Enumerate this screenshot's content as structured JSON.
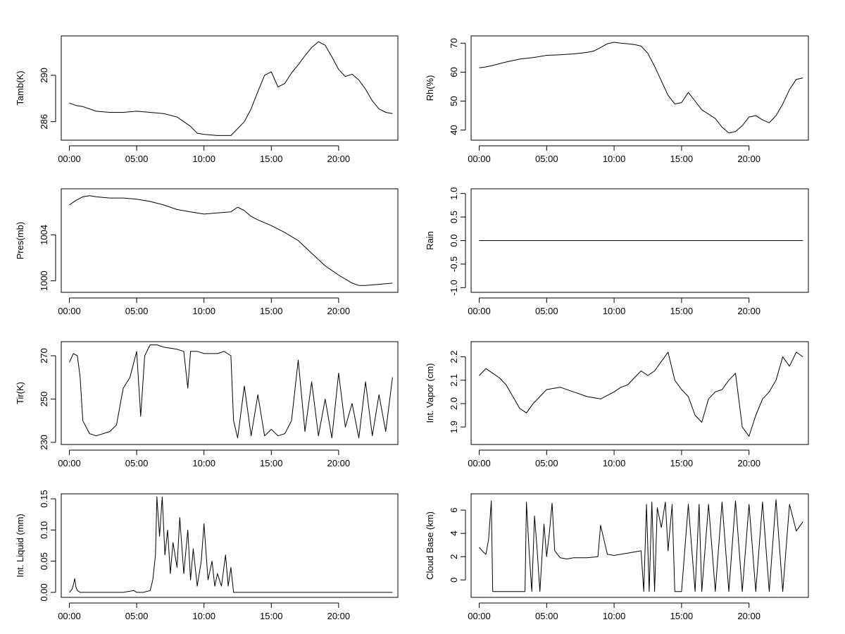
{
  "chart_data": [
    {
      "type": "line",
      "ylabel": "Tamb(K)",
      "x_ticks": [
        "00:00",
        "05:00",
        "10:00",
        "15:00",
        "20:00"
      ],
      "y_ticks": [
        286,
        290
      ],
      "xlim": [
        -0.6,
        24.4
      ],
      "ylim": [
        284.4,
        293.4
      ],
      "series": [
        {
          "x": [
            0,
            0.5,
            1,
            1.5,
            2,
            3,
            4,
            5,
            6,
            7,
            8,
            9,
            9.5,
            10,
            11,
            12,
            12.5,
            13,
            13.5,
            14,
            14.5,
            15,
            15.5,
            16,
            16.5,
            17,
            17.5,
            18,
            18.5,
            19,
            19.5,
            20,
            20.5,
            21,
            21.5,
            22,
            22.5,
            23,
            23.5,
            24
          ],
          "y": [
            287.6,
            287.4,
            287.3,
            287.1,
            286.9,
            286.8,
            286.8,
            286.9,
            286.8,
            286.7,
            286.4,
            285.6,
            285.0,
            284.9,
            284.8,
            284.8,
            285.4,
            286.0,
            287.1,
            288.6,
            290.0,
            290.3,
            289.0,
            289.3,
            290.2,
            290.9,
            291.7,
            292.4,
            292.9,
            292.6,
            291.6,
            290.5,
            289.9,
            290.1,
            289.6,
            288.8,
            287.8,
            287.1,
            286.8,
            286.7
          ]
        }
      ]
    },
    {
      "type": "line",
      "ylabel": "Rh(%)",
      "x_ticks": [
        "00:00",
        "05:00",
        "10:00",
        "15:00",
        "20:00"
      ],
      "y_ticks": [
        40,
        50,
        60,
        70
      ],
      "xlim": [
        -0.6,
        24.4
      ],
      "ylim": [
        36.5,
        72.5
      ],
      "series": [
        {
          "x": [
            0,
            0.5,
            1,
            2,
            3,
            4,
            5,
            6,
            7,
            8,
            8.5,
            9,
            9.5,
            10,
            10.5,
            11,
            11.5,
            12,
            12.5,
            13,
            13.5,
            14,
            14.5,
            15,
            15.5,
            16,
            16.5,
            17,
            17.5,
            18,
            18.5,
            19,
            19.5,
            20,
            20.5,
            21,
            21.5,
            22,
            22.5,
            23,
            23.5,
            24
          ],
          "y": [
            61.5,
            61.8,
            62.3,
            63.5,
            64.5,
            65.0,
            65.8,
            66.0,
            66.3,
            66.8,
            67.3,
            68.5,
            69.8,
            70.3,
            70.0,
            69.8,
            69.5,
            69.0,
            66.5,
            62.0,
            57.0,
            52.0,
            49.0,
            49.5,
            53.0,
            50.0,
            47.0,
            45.5,
            44.0,
            41.0,
            39.0,
            39.5,
            41.5,
            44.5,
            45.0,
            43.5,
            42.5,
            45.0,
            49.0,
            54.0,
            57.5,
            58.0
          ]
        }
      ]
    },
    {
      "type": "line",
      "ylabel": "Pres(mb)",
      "x_ticks": [
        "00:00",
        "05:00",
        "10:00",
        "15:00",
        "20:00"
      ],
      "y_ticks": [
        1000,
        1004
      ],
      "xlim": [
        -0.6,
        24.4
      ],
      "ylim": [
        999.0,
        1008.0
      ],
      "series": [
        {
          "x": [
            0,
            0.5,
            1,
            1.5,
            2,
            3,
            4,
            5,
            6,
            7,
            8,
            9,
            10,
            11,
            12,
            12.5,
            13,
            13.5,
            14,
            15,
            16,
            17,
            18,
            19,
            20,
            21,
            21.5,
            22,
            23,
            24
          ],
          "y": [
            1006.6,
            1007.0,
            1007.3,
            1007.4,
            1007.3,
            1007.2,
            1007.2,
            1007.1,
            1006.9,
            1006.6,
            1006.2,
            1006.0,
            1005.8,
            1005.9,
            1006.0,
            1006.4,
            1006.1,
            1005.6,
            1005.3,
            1004.8,
            1004.2,
            1003.5,
            1002.4,
            1001.3,
            1000.5,
            999.8,
            999.6,
            999.6,
            999.7,
            999.8
          ]
        }
      ]
    },
    {
      "type": "line",
      "ylabel": "Rain",
      "x_ticks": [
        "00:00",
        "05:00",
        "10:00",
        "15:00",
        "20:00"
      ],
      "y_ticks": [
        -1.0,
        -0.5,
        0.0,
        0.5,
        1.0
      ],
      "xlim": [
        -0.6,
        24.4
      ],
      "ylim": [
        -1.1,
        1.1
      ],
      "series": [
        {
          "x": [
            0,
            24
          ],
          "y": [
            0,
            0
          ]
        }
      ]
    },
    {
      "type": "line",
      "ylabel": "Tir(K)",
      "x_ticks": [
        "00:00",
        "05:00",
        "10:00",
        "15:00",
        "20:00"
      ],
      "y_ticks": [
        230,
        250,
        270
      ],
      "xlim": [
        -0.6,
        24.4
      ],
      "ylim": [
        229,
        276.5
      ],
      "series": [
        {
          "x": [
            0,
            0.3,
            0.6,
            0.8,
            1,
            1.5,
            2,
            3,
            3.5,
            4,
            4.5,
            5,
            5.3,
            5.6,
            6,
            6.5,
            7,
            8,
            8.5,
            8.8,
            9,
            9.5,
            10,
            11,
            11.5,
            12,
            12.2,
            12.5,
            13,
            13.5,
            14,
            14.5,
            15,
            15.5,
            16,
            16.5,
            17,
            17.5,
            18,
            18.5,
            19,
            19.5,
            20,
            20.5,
            21,
            21.5,
            22,
            22.5,
            23,
            23.5,
            24
          ],
          "y": [
            267,
            271,
            270,
            260,
            240,
            234,
            233,
            235,
            238,
            255,
            260,
            272,
            242,
            270,
            275,
            275,
            274,
            273,
            272,
            255,
            272,
            272,
            271,
            271,
            272,
            270,
            240,
            232,
            256,
            233,
            252,
            233,
            236,
            233,
            234,
            240,
            268,
            235,
            258,
            233,
            250,
            232,
            262,
            237,
            248,
            232,
            258,
            233,
            252,
            235,
            260
          ]
        }
      ]
    },
    {
      "type": "line",
      "ylabel": "Int. Vapor (cm)",
      "x_ticks": [
        "00:00",
        "05:00",
        "10:00",
        "15:00",
        "20:00"
      ],
      "y_ticks": [
        1.9,
        2.0,
        2.1,
        2.2
      ],
      "xlim": [
        -0.6,
        24.4
      ],
      "ylim": [
        1.825,
        2.265
      ],
      "series": [
        {
          "x": [
            0,
            0.5,
            1,
            1.5,
            2,
            2.5,
            3,
            3.5,
            4,
            4.5,
            5,
            6,
            7,
            8,
            9,
            10,
            10.5,
            11,
            11.5,
            12,
            12.5,
            13,
            13.5,
            14,
            14.5,
            15,
            15.5,
            16,
            16.5,
            17,
            17.5,
            18,
            18.5,
            19,
            19.5,
            20,
            20.5,
            21,
            21.5,
            22,
            22.5,
            23,
            23.5,
            24
          ],
          "y": [
            2.12,
            2.15,
            2.13,
            2.11,
            2.08,
            2.03,
            1.98,
            1.96,
            2.0,
            2.03,
            2.06,
            2.07,
            2.05,
            2.03,
            2.02,
            2.05,
            2.07,
            2.08,
            2.11,
            2.14,
            2.12,
            2.14,
            2.18,
            2.22,
            2.1,
            2.06,
            2.03,
            1.95,
            1.92,
            2.02,
            2.05,
            2.06,
            2.1,
            2.13,
            1.9,
            1.86,
            1.95,
            2.02,
            2.05,
            2.1,
            2.2,
            2.16,
            2.22,
            2.2
          ]
        }
      ]
    },
    {
      "type": "line",
      "ylabel": "Int. Liquid (mm)",
      "x_ticks": [
        "00:00",
        "05:00",
        "10:00",
        "15:00",
        "20:00"
      ],
      "y_ticks": [
        0.0,
        0.05,
        0.1,
        0.15
      ],
      "xlim": [
        -0.6,
        24.4
      ],
      "ylim": [
        -0.008,
        0.158
      ],
      "series": [
        {
          "x": [
            0,
            0.2,
            0.3,
            0.4,
            0.5,
            0.6,
            0.8,
            1,
            2,
            3,
            4,
            4.8,
            5,
            5.5,
            6,
            6.2,
            6.4,
            6.5,
            6.7,
            6.9,
            7.1,
            7.3,
            7.5,
            7.7,
            8,
            8.2,
            8.5,
            8.8,
            9,
            9.2,
            9.5,
            9.8,
            10,
            10.3,
            10.6,
            10.8,
            11,
            11.3,
            11.6,
            11.8,
            12,
            12.2,
            13,
            15,
            18,
            20,
            22,
            24
          ],
          "y": [
            0,
            0.005,
            0.012,
            0.022,
            0.008,
            0.003,
            0,
            0,
            0,
            0,
            0,
            0.003,
            0,
            0,
            0.003,
            0.02,
            0.06,
            0.153,
            0.09,
            0.153,
            0.06,
            0.1,
            0.03,
            0.08,
            0.04,
            0.12,
            0.03,
            0.1,
            0.02,
            0.07,
            0.01,
            0.05,
            0.11,
            0.02,
            0.05,
            0.01,
            0.03,
            0.01,
            0.06,
            0.01,
            0.04,
            0,
            0,
            0,
            0,
            0,
            0,
            0
          ]
        }
      ]
    },
    {
      "type": "line",
      "ylabel": "Cloud Base (km)",
      "x_ticks": [
        "00:00",
        "05:00",
        "10:00",
        "15:00",
        "20:00"
      ],
      "y_ticks": [
        0,
        2,
        4,
        6
      ],
      "xlim": [
        -0.6,
        24.4
      ],
      "ylim": [
        -1.5,
        7.4
      ],
      "series": [
        {
          "x": [
            0,
            0.3,
            0.5,
            0.7,
            0.9,
            1,
            2,
            3,
            3.4,
            3.5,
            3.7,
            3.9,
            4.1,
            4.3,
            4.5,
            4.8,
            5,
            5.2,
            5.4,
            5.6,
            6,
            6.5,
            7,
            8,
            8.8,
            9,
            9.5,
            10,
            11,
            12,
            12.2,
            12.4,
            12.6,
            12.8,
            13,
            13.2,
            13.5,
            13.8,
            14,
            14.3,
            14.5,
            15,
            15.5,
            16,
            16.3,
            16.5,
            17,
            17.5,
            18,
            18.5,
            19,
            19.5,
            20,
            20.5,
            21,
            21.5,
            22,
            22.5,
            23,
            23.5,
            24
          ],
          "y": [
            2.8,
            2.4,
            2.2,
            3.5,
            6.8,
            -1,
            -1,
            -1,
            -1,
            6.7,
            2.5,
            -1,
            5.5,
            2.5,
            -1,
            4.8,
            2.0,
            4.0,
            6.6,
            2.5,
            1.9,
            1.8,
            1.9,
            1.9,
            2.0,
            4.7,
            2.2,
            2.1,
            2.3,
            2.5,
            -1,
            6.5,
            -1,
            6.7,
            -1,
            6.2,
            4.5,
            6.7,
            2.5,
            6.5,
            -1,
            -1,
            6.5,
            -1,
            6.5,
            -1,
            6.5,
            -1,
            6.7,
            -1,
            6.8,
            -1,
            6.5,
            -1,
            6.7,
            -1,
            6.9,
            -1,
            6.5,
            4.2,
            5.0
          ]
        }
      ]
    }
  ]
}
